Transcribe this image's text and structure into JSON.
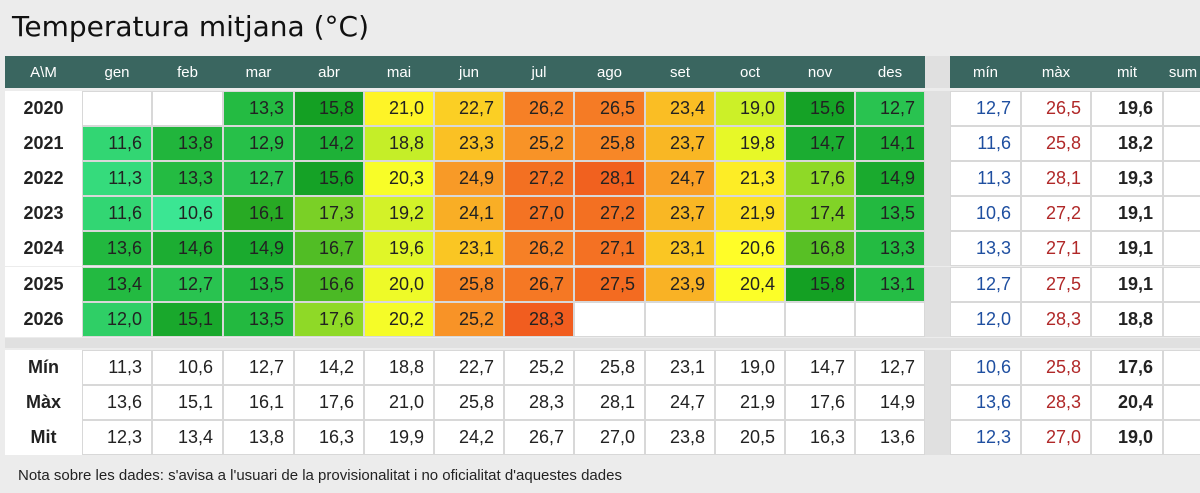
{
  "title": "Temperatura mitjana (°C)",
  "note": "Nota sobre les dades: s'avisa a l'usuari de la provisionalitat i no oficialitat d'aquestes dades",
  "chart_data": {
    "type": "table",
    "title": "Temperatura mitjana (°C)",
    "corner_label": "A\\M",
    "months": [
      "gen",
      "feb",
      "mar",
      "abr",
      "mai",
      "jun",
      "jul",
      "ago",
      "set",
      "oct",
      "nov",
      "des"
    ],
    "stat_columns": [
      "mín",
      "màx",
      "mit",
      "sum"
    ],
    "years": [
      {
        "year": "2020",
        "values": [
          null,
          null,
          "13,3",
          "15,8",
          "21,0",
          "22,7",
          "26,2",
          "26,5",
          "23,4",
          "19,0",
          "15,6",
          "12,7"
        ],
        "min": "12,7",
        "max": "26,5",
        "mean": "19,6"
      },
      {
        "year": "2021",
        "values": [
          "11,6",
          "13,8",
          "12,9",
          "14,2",
          "18,8",
          "23,3",
          "25,2",
          "25,8",
          "23,7",
          "19,8",
          "14,7",
          "14,1"
        ],
        "min": "11,6",
        "max": "25,8",
        "mean": "18,2"
      },
      {
        "year": "2022",
        "values": [
          "11,3",
          "13,3",
          "12,7",
          "15,6",
          "20,3",
          "24,9",
          "27,2",
          "28,1",
          "24,7",
          "21,3",
          "17,6",
          "14,9"
        ],
        "min": "11,3",
        "max": "28,1",
        "mean": "19,3"
      },
      {
        "year": "2023",
        "values": [
          "11,6",
          "10,6",
          "16,1",
          "17,3",
          "19,2",
          "24,1",
          "27,0",
          "27,2",
          "23,7",
          "21,9",
          "17,4",
          "13,5"
        ],
        "min": "10,6",
        "max": "27,2",
        "mean": "19,1"
      },
      {
        "year": "2024",
        "values": [
          "13,6",
          "14,6",
          "14,9",
          "16,7",
          "19,6",
          "23,1",
          "26,2",
          "27,1",
          "23,1",
          "20,6",
          "16,8",
          "13,3"
        ],
        "min": "13,3",
        "max": "27,1",
        "mean": "19,1"
      },
      {
        "year": "2025",
        "values": [
          "13,4",
          "12,7",
          "13,5",
          "16,6",
          "20,0",
          "25,8",
          "26,7",
          "27,5",
          "23,9",
          "20,4",
          "15,8",
          "13,1"
        ],
        "min": "12,7",
        "max": "27,5",
        "mean": "19,1"
      },
      {
        "year": "2026",
        "values": [
          "12,0",
          "15,1",
          "13,5",
          "17,6",
          "20,2",
          "25,2",
          "28,3",
          null,
          null,
          null,
          null,
          null
        ],
        "min": "12,0",
        "max": "28,3",
        "mean": "18,8"
      }
    ],
    "summary": [
      {
        "label": "Mín",
        "values": [
          "11,3",
          "10,6",
          "12,7",
          "14,2",
          "18,8",
          "22,7",
          "25,2",
          "25,8",
          "23,1",
          "19,0",
          "14,7",
          "12,7"
        ],
        "min": "10,6",
        "max": "25,8",
        "mean": "17,6"
      },
      {
        "label": "Màx",
        "values": [
          "13,6",
          "15,1",
          "16,1",
          "17,6",
          "21,0",
          "25,8",
          "28,3",
          "28,1",
          "24,7",
          "21,9",
          "17,6",
          "14,9"
        ],
        "min": "13,6",
        "max": "28,3",
        "mean": "20,4"
      },
      {
        "label": "Mit",
        "values": [
          "12,3",
          "13,4",
          "13,8",
          "16,3",
          "19,9",
          "24,2",
          "26,7",
          "27,0",
          "23,8",
          "20,5",
          "16,3",
          "13,6"
        ],
        "min": "12,3",
        "max": "27,0",
        "mean": "19,0"
      }
    ],
    "header_color": "#3a6660",
    "min_text_color": "#1f4fa0",
    "max_text_color": "#b02828"
  }
}
